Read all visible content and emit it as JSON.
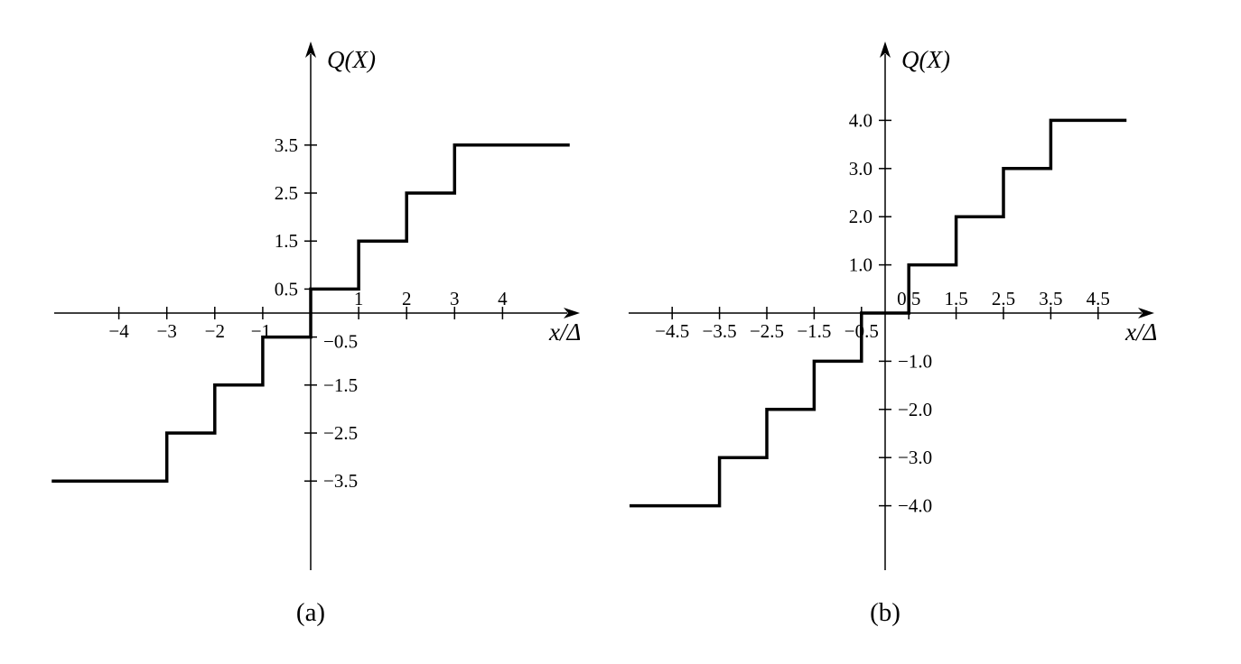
{
  "chart_data": [
    {
      "type": "line",
      "step": true,
      "caption": "(a)",
      "ylabel": "Q(X)",
      "xlabel": "x/Δ",
      "xlim": [
        -5.4,
        5.4
      ],
      "ylim": [
        -5.4,
        5.4
      ],
      "x_ticks": [
        {
          "value": -4,
          "label": "−4"
        },
        {
          "value": -3,
          "label": "−3"
        },
        {
          "value": -2,
          "label": "−2"
        },
        {
          "value": -1,
          "label": "−1"
        },
        {
          "value": 1,
          "label": "1"
        },
        {
          "value": 2,
          "label": "2"
        },
        {
          "value": 3,
          "label": "3"
        },
        {
          "value": 4,
          "label": "4"
        }
      ],
      "y_ticks": [
        {
          "value": 3.5,
          "label": "3.5"
        },
        {
          "value": 2.5,
          "label": "2.5"
        },
        {
          "value": 1.5,
          "label": "1.5"
        },
        {
          "value": 0.5,
          "label": "0.5"
        },
        {
          "value": -0.5,
          "label": "−0.5"
        },
        {
          "value": -1.5,
          "label": "−1.5"
        },
        {
          "value": -2.5,
          "label": "−2.5"
        },
        {
          "value": -3.5,
          "label": "−3.5"
        }
      ],
      "steps": [
        {
          "x_start": -5.4,
          "x_end": -3,
          "y": -3.5
        },
        {
          "x_start": -3,
          "x_end": -2,
          "y": -2.5
        },
        {
          "x_start": -2,
          "x_end": -1,
          "y": -1.5
        },
        {
          "x_start": -1,
          "x_end": 0,
          "y": -0.5
        },
        {
          "x_start": 0,
          "x_end": 1,
          "y": 0.5
        },
        {
          "x_start": 1,
          "x_end": 2,
          "y": 1.5
        },
        {
          "x_start": 2,
          "x_end": 3,
          "y": 2.5
        },
        {
          "x_start": 3,
          "x_end": 5.4,
          "y": 3.5
        }
      ]
    },
    {
      "type": "line",
      "step": true,
      "caption": "(b)",
      "ylabel": "Q(X)",
      "xlabel": "x/Δ",
      "xlim": [
        -5.4,
        5.4
      ],
      "ylim": [
        -5.4,
        5.4
      ],
      "x_ticks": [
        {
          "value": -4.5,
          "label": "−4.5"
        },
        {
          "value": -3.5,
          "label": "−3.5"
        },
        {
          "value": -2.5,
          "label": "−2.5"
        },
        {
          "value": -1.5,
          "label": "−1.5"
        },
        {
          "value": -0.5,
          "label": "−0.5"
        },
        {
          "value": 0.5,
          "label": "0.5"
        },
        {
          "value": 1.5,
          "label": "1.5"
        },
        {
          "value": 2.5,
          "label": "2.5"
        },
        {
          "value": 3.5,
          "label": "3.5"
        },
        {
          "value": 4.5,
          "label": "4.5"
        }
      ],
      "y_ticks": [
        {
          "value": 4,
          "label": "4.0"
        },
        {
          "value": 3,
          "label": "3.0"
        },
        {
          "value": 2,
          "label": "2.0"
        },
        {
          "value": 1,
          "label": "1.0"
        },
        {
          "value": -1,
          "label": "−1.0"
        },
        {
          "value": -2,
          "label": "−2.0"
        },
        {
          "value": -3,
          "label": "−3.0"
        },
        {
          "value": -4,
          "label": "−4.0"
        }
      ],
      "steps": [
        {
          "x_start": -5.4,
          "x_end": -3.5,
          "y": -4
        },
        {
          "x_start": -3.5,
          "x_end": -2.5,
          "y": -3
        },
        {
          "x_start": -2.5,
          "x_end": -1.5,
          "y": -2
        },
        {
          "x_start": -1.5,
          "x_end": -0.5,
          "y": -1
        },
        {
          "x_start": -0.5,
          "x_end": 0.5,
          "y": 0
        },
        {
          "x_start": 0.5,
          "x_end": 1.5,
          "y": 1
        },
        {
          "x_start": 1.5,
          "x_end": 2.5,
          "y": 2
        },
        {
          "x_start": 2.5,
          "x_end": 3.5,
          "y": 3
        },
        {
          "x_start": 3.5,
          "x_end": 5.1,
          "y": 4
        }
      ]
    }
  ]
}
